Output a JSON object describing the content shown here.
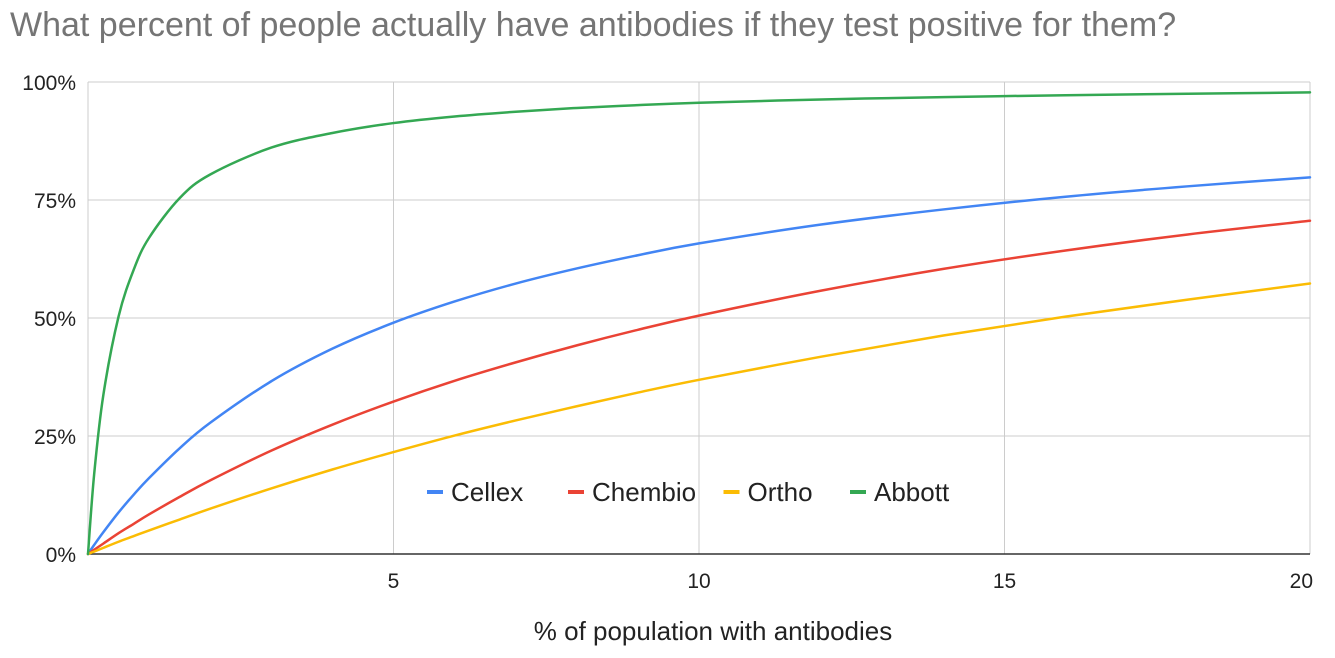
{
  "chart_data": {
    "type": "line",
    "title": "What percent of people actually have antibodies if they test positive for them?",
    "xlabel": "% of population with antibodies",
    "ylabel": "",
    "xlim": [
      0,
      20
    ],
    "ylim": [
      0,
      100
    ],
    "x_ticks": [
      {
        "value": 5,
        "label": "5"
      },
      {
        "value": 10,
        "label": "10"
      },
      {
        "value": 15,
        "label": "15"
      },
      {
        "value": 20,
        "label": "20"
      }
    ],
    "y_ticks": [
      {
        "value": 0,
        "label": "0%"
      },
      {
        "value": 25,
        "label": "25%"
      },
      {
        "value": 50,
        "label": "50%"
      },
      {
        "value": 75,
        "label": "75%"
      },
      {
        "value": 100,
        "label": "100%"
      }
    ],
    "grid": true,
    "legend_position": "bottom-center-inside",
    "x": [
      0,
      0.1,
      0.25,
      0.5,
      0.75,
      1,
      1.5,
      2,
      3,
      4,
      5,
      6,
      7,
      8,
      9,
      10,
      12,
      14,
      16,
      18,
      20
    ],
    "series": [
      {
        "name": "Cellex",
        "color": "#4285f4",
        "values": [
          0,
          1.9,
          4.6,
          8.8,
          12.6,
          16.1,
          22.4,
          27.8,
          36.6,
          43.5,
          49.0,
          53.5,
          57.3,
          60.5,
          63.3,
          65.8,
          69.8,
          73.0,
          75.7,
          77.9,
          79.8
        ]
      },
      {
        "name": "Chembio",
        "color": "#ea4335",
        "values": [
          0,
          0.9,
          2.2,
          4.4,
          6.4,
          8.4,
          12.1,
          15.6,
          21.9,
          27.4,
          32.3,
          36.7,
          40.6,
          44.2,
          47.5,
          50.5,
          55.8,
          60.4,
          64.3,
          67.7,
          70.6
        ]
      },
      {
        "name": "Ortho",
        "color": "#fbbc04",
        "values": [
          0,
          0.5,
          1.3,
          2.6,
          3.8,
          5.0,
          7.3,
          9.6,
          13.9,
          17.9,
          21.6,
          25.1,
          28.3,
          31.3,
          34.2,
          36.9,
          41.8,
          46.3,
          50.3,
          53.9,
          57.3
        ]
      },
      {
        "name": "Abbott",
        "color": "#34a853",
        "values": [
          0,
          16.8,
          33.6,
          50.3,
          60.3,
          67.0,
          75.4,
          80.4,
          86.1,
          89.2,
          91.3,
          92.7,
          93.7,
          94.5,
          95.1,
          95.6,
          96.3,
          96.8,
          97.2,
          97.5,
          97.8
        ]
      }
    ]
  }
}
